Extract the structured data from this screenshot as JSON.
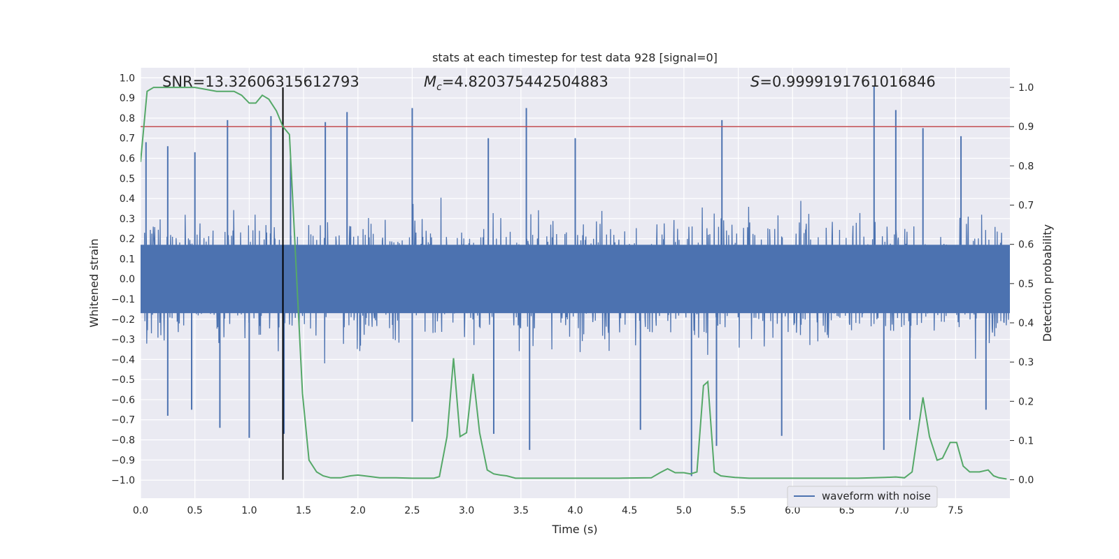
{
  "chart_data": {
    "type": "line",
    "title": "stats at each timestep for test data 928 [signal=0]",
    "xlabel": "Time (s)",
    "ylabel_left": "Whitened strain",
    "ylabel_right": "Detection probability",
    "xlim": [
      0,
      8.0
    ],
    "ylim_left": [
      -1.09,
      1.05
    ],
    "ylim_right": [
      -0.047,
      1.05
    ],
    "x_ticks": [
      "0.0",
      "0.5",
      "1.0",
      "1.5",
      "2.0",
      "2.5",
      "3.0",
      "3.5",
      "4.0",
      "4.5",
      "5.0",
      "5.5",
      "6.0",
      "6.5",
      "7.0",
      "7.5"
    ],
    "y_left_ticks": [
      "1.0",
      "0.9",
      "0.8",
      "0.7",
      "0.6",
      "0.5",
      "0.4",
      "0.3",
      "0.2",
      "0.1",
      "0.0",
      "−0.1",
      "−0.2",
      "−0.3",
      "−0.4",
      "−0.5",
      "−0.6",
      "−0.7",
      "−0.8",
      "−0.9",
      "−1.0"
    ],
    "y_right_ticks": [
      "1.0",
      "0.9",
      "0.8",
      "0.7",
      "0.6",
      "0.5",
      "0.4",
      "0.3",
      "0.2",
      "0.1",
      "0.0"
    ],
    "grid": true,
    "legend_position": "lower-right",
    "annotations": {
      "snr": "SNR=13.32606315612793",
      "mc_symbol": "M",
      "mc_sub": "c",
      "mc_value": "=4.820375442504883",
      "s_symbol": "S",
      "s_value": "=0.9999191761016846"
    },
    "threshold": {
      "value": 0.9,
      "axis": "right"
    },
    "marker_time": 1.31,
    "series": [
      {
        "name": "waveform with noise",
        "axis": "left",
        "style": "noise-band",
        "description": "dense whitened strain noise, typical range ±0.4, peaks to ±0.96",
        "peaks_pos": [
          [
            0.05,
            0.68
          ],
          [
            0.25,
            0.66
          ],
          [
            0.5,
            0.63
          ],
          [
            0.8,
            0.79
          ],
          [
            1.2,
            0.81
          ],
          [
            1.38,
            0.6
          ],
          [
            1.7,
            0.78
          ],
          [
            1.9,
            0.83
          ],
          [
            2.5,
            0.85
          ],
          [
            3.2,
            0.7
          ],
          [
            3.55,
            0.85
          ],
          [
            4.0,
            0.7
          ],
          [
            5.35,
            0.79
          ],
          [
            6.75,
            0.96
          ],
          [
            6.95,
            0.84
          ],
          [
            7.2,
            0.75
          ],
          [
            7.55,
            0.71
          ]
        ],
        "peaks_neg": [
          [
            0.25,
            -0.68
          ],
          [
            0.47,
            -0.65
          ],
          [
            0.73,
            -0.74
          ],
          [
            1.0,
            -0.79
          ],
          [
            1.32,
            -0.77
          ],
          [
            2.5,
            -0.71
          ],
          [
            3.25,
            -0.77
          ],
          [
            3.58,
            -0.85
          ],
          [
            4.6,
            -0.75
          ],
          [
            5.07,
            -0.98
          ],
          [
            5.3,
            -0.83
          ],
          [
            5.9,
            -0.78
          ],
          [
            6.84,
            -0.85
          ],
          [
            7.08,
            -0.7
          ],
          [
            7.78,
            -0.65
          ]
        ]
      },
      {
        "name": "detection probability",
        "axis": "right",
        "style": "line",
        "color": "#55a868",
        "x": [
          0.0,
          0.06,
          0.12,
          0.2,
          0.35,
          0.5,
          0.7,
          0.86,
          0.93,
          1.0,
          1.06,
          1.12,
          1.18,
          1.25,
          1.31,
          1.37,
          1.43,
          1.49,
          1.55,
          1.62,
          1.68,
          1.75,
          1.84,
          1.93,
          2.0,
          2.06,
          2.12,
          2.2,
          2.35,
          2.5,
          2.63,
          2.7,
          2.75,
          2.82,
          2.88,
          2.94,
          3.0,
          3.06,
          3.12,
          3.19,
          3.25,
          3.31,
          3.37,
          3.45,
          3.6,
          4.0,
          4.4,
          4.7,
          4.78,
          4.85,
          4.92,
          5.0,
          5.06,
          5.12,
          5.18,
          5.22,
          5.28,
          5.34,
          5.4,
          5.47,
          5.6,
          5.9,
          6.2,
          6.6,
          6.85,
          6.95,
          7.03,
          7.1,
          7.2,
          7.26,
          7.33,
          7.38,
          7.45,
          7.51,
          7.57,
          7.63,
          7.72,
          7.8,
          7.85,
          7.9,
          7.97
        ],
        "y": [
          0.81,
          0.99,
          1.0,
          1.0,
          1.0,
          1.0,
          0.99,
          0.99,
          0.98,
          0.96,
          0.96,
          0.98,
          0.97,
          0.94,
          0.9,
          0.88,
          0.55,
          0.22,
          0.05,
          0.02,
          0.01,
          0.005,
          0.005,
          0.01,
          0.012,
          0.01,
          0.008,
          0.005,
          0.005,
          0.004,
          0.004,
          0.004,
          0.008,
          0.11,
          0.31,
          0.11,
          0.12,
          0.27,
          0.12,
          0.025,
          0.015,
          0.012,
          0.01,
          0.004,
          0.004,
          0.004,
          0.004,
          0.005,
          0.018,
          0.028,
          0.018,
          0.018,
          0.015,
          0.02,
          0.24,
          0.25,
          0.02,
          0.01,
          0.008,
          0.006,
          0.004,
          0.004,
          0.004,
          0.004,
          0.006,
          0.007,
          0.005,
          0.02,
          0.21,
          0.11,
          0.05,
          0.055,
          0.095,
          0.095,
          0.035,
          0.02,
          0.02,
          0.025,
          0.01,
          0.005,
          0.002
        ]
      }
    ]
  },
  "colors": {
    "background": "#eaeaf2",
    "grid": "#ffffff",
    "noise": "#4c72b0",
    "probability": "#55a868",
    "threshold": "#c44e52",
    "marker": "#000000"
  }
}
